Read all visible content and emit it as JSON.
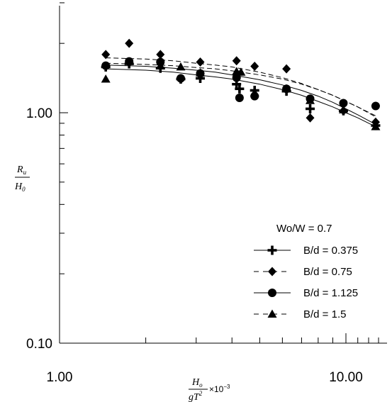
{
  "chart_data": {
    "type": "scatter",
    "title": "",
    "x_scale": "log",
    "y_scale": "log",
    "xlim": [
      1.0,
      13.5
    ],
    "ylim": [
      0.1,
      3.0
    ],
    "x_tick_labels": [
      "1.00",
      "10.00"
    ],
    "y_tick_labels": [
      "0.10",
      "1.00"
    ],
    "x_ticks": [
      1.0,
      10.0
    ],
    "y_ticks": [
      0.1,
      1.0
    ],
    "xlabel": {
      "numerator": "H",
      "numerator_sub": "o",
      "denominator": "gT",
      "denominator_sup": "2",
      "suffix": "×10",
      "suffix_sup": "−3"
    },
    "ylabel": {
      "numerator": "R",
      "numerator_sub": "u",
      "denominator": "H",
      "denominator_sub": "0"
    },
    "legend": {
      "title": "Wo/W = 0.7",
      "placement": "bottom-right",
      "entries": [
        "B/d = 0.375",
        "B/d = 0.75",
        "B/d = 1.125",
        "B/d = 1.5"
      ]
    },
    "grid": false,
    "series": [
      {
        "name": "B/d = 0.375",
        "marker": "plus",
        "line": "solid",
        "x": [
          1.45,
          1.75,
          2.25,
          2.65,
          3.1,
          4.15,
          4.25,
          4.8,
          6.2,
          7.5,
          9.8,
          12.7
        ],
        "y": [
          1.58,
          1.63,
          1.56,
          1.4,
          1.41,
          1.33,
          1.27,
          1.25,
          1.24,
          1.04,
          1.02,
          0.88
        ],
        "fit_x": [
          1.45,
          2.0,
          2.5,
          3.0,
          3.5,
          4.0,
          5.0,
          6.0,
          7.0,
          8.0,
          9.0,
          10.0,
          11.0,
          12.7
        ],
        "fit_y": [
          1.55,
          1.53,
          1.5,
          1.46,
          1.43,
          1.4,
          1.33,
          1.26,
          1.19,
          1.12,
          1.06,
          1.0,
          0.95,
          0.87
        ]
      },
      {
        "name": "B/d = 0.75",
        "marker": "diamond",
        "line": "dashed",
        "x": [
          1.45,
          1.75,
          2.25,
          2.65,
          3.1,
          4.15,
          4.8,
          6.2,
          7.5,
          9.8,
          12.7
        ],
        "y": [
          1.79,
          2.0,
          1.79,
          1.4,
          1.66,
          1.68,
          1.59,
          1.55,
          0.95,
          1.02,
          0.91
        ],
        "fit_x": [
          1.45,
          2.0,
          2.5,
          3.0,
          3.5,
          4.0,
          5.0,
          6.0,
          7.0,
          8.0,
          9.0,
          10.0,
          11.0,
          12.7
        ],
        "fit_y": [
          1.73,
          1.71,
          1.68,
          1.64,
          1.61,
          1.58,
          1.5,
          1.42,
          1.34,
          1.26,
          1.19,
          1.12,
          1.06,
          0.96
        ]
      },
      {
        "name": "B/d = 1.125",
        "marker": "circle",
        "line": "solid",
        "x": [
          1.45,
          1.75,
          2.25,
          2.65,
          3.1,
          4.15,
          4.25,
          4.8,
          6.2,
          7.5,
          9.8,
          12.7
        ],
        "y": [
          1.6,
          1.67,
          1.66,
          1.41,
          1.48,
          1.42,
          1.16,
          1.18,
          1.27,
          1.15,
          1.1,
          1.07
        ],
        "fit_x": [
          1.45,
          2.0,
          2.5,
          3.0,
          3.5,
          4.0,
          5.0,
          6.0,
          7.0,
          8.0,
          9.0,
          10.0,
          11.0,
          12.7
        ],
        "fit_y": [
          1.61,
          1.59,
          1.56,
          1.53,
          1.5,
          1.46,
          1.39,
          1.32,
          1.25,
          1.18,
          1.11,
          1.04,
          0.98,
          0.89
        ]
      },
      {
        "name": "B/d = 1.5",
        "marker": "triangle",
        "line": "dashed",
        "x": [
          1.45,
          2.25,
          2.65,
          3.1,
          4.15,
          4.3,
          4.8,
          6.2,
          7.5,
          9.8,
          12.7
        ],
        "y": [
          1.4,
          1.6,
          1.58,
          1.49,
          1.51,
          1.5,
          1.22,
          1.27,
          1.13,
          1.03,
          0.87
        ],
        "fit_x": [
          1.45,
          2.0,
          2.5,
          3.0,
          3.5,
          4.0,
          5.0,
          6.0,
          7.0,
          8.0,
          9.0,
          10.0,
          11.0,
          12.7
        ],
        "fit_y": [
          1.64,
          1.62,
          1.6,
          1.57,
          1.55,
          1.52,
          1.46,
          1.4,
          1.33,
          1.26,
          1.19,
          1.12,
          1.06,
          0.97
        ]
      }
    ]
  }
}
